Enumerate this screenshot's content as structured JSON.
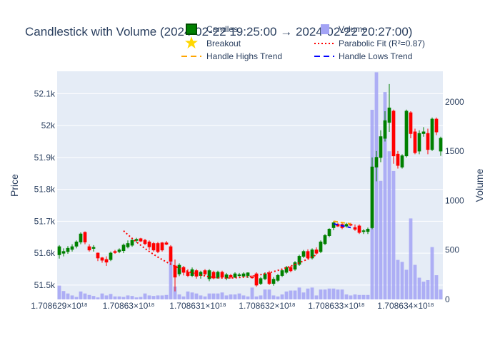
{
  "chart_data": {
    "type": "candlestick",
    "title": "Candlestick with Volume (2024-02-22 19:25:00 → 2024-02-22 20:27:00)",
    "xlabel": "",
    "ylabel": "Price",
    "y2label": "Volume",
    "x_tick_labels": [
      "1.708629×10¹⁸",
      "1.70863×10¹⁸",
      "1.708631×10¹⁸",
      "1.708632×10¹⁸",
      "1.708633×10¹⁸",
      "1.708634×10¹⁸"
    ],
    "y_tick_labels": [
      "51.5k",
      "51.6k",
      "51.7k",
      "51.8k",
      "51.9k",
      "52k",
      "52.1k"
    ],
    "y_ticks": [
      51500,
      51600,
      51700,
      51800,
      51900,
      52000,
      52100
    ],
    "y2_tick_labels": [
      "0",
      "500",
      "1000",
      "1500",
      "2000"
    ],
    "y2_ticks": [
      0,
      500,
      1000,
      1500,
      2000
    ],
    "ylim": [
      51455,
      52170
    ],
    "y2lim": [
      0,
      2310
    ],
    "colors": {
      "increasing": "#008000",
      "decreasing": "#ff0000",
      "volume": "#a3a3f5",
      "breakout": "#ffd700",
      "parabolic": "#ff0000",
      "handle_highs": "#ffa500",
      "handle_lows": "#0000ff",
      "plot_bg": "#e5ecf6",
      "grid": "#ffffff"
    },
    "legend": {
      "placement": "top",
      "entries": [
        {
          "name": "Candles",
          "symbol": "candle"
        },
        {
          "name": "Volume",
          "symbol": "bar"
        },
        {
          "name": "Breakout",
          "symbol": "star"
        },
        {
          "name": "Parabolic Fit (R²=0.87)",
          "symbol": "dotted-line"
        },
        {
          "name": "Handle Highs Trend",
          "symbol": "dashed-orange"
        },
        {
          "name": "Handle Lows Trend",
          "symbol": "dashed-blue"
        }
      ]
    },
    "candles": [
      {
        "o": 51595,
        "h": 51625,
        "l": 51583,
        "c": 51620
      },
      {
        "o": 51600,
        "h": 51615,
        "l": 51590,
        "c": 51605
      },
      {
        "o": 51605,
        "h": 51622,
        "l": 51598,
        "c": 51615
      },
      {
        "o": 51612,
        "h": 51628,
        "l": 51605,
        "c": 51620
      },
      {
        "o": 51622,
        "h": 51640,
        "l": 51615,
        "c": 51635
      },
      {
        "o": 51635,
        "h": 51665,
        "l": 51628,
        "c": 51660
      },
      {
        "o": 51665,
        "h": 51668,
        "l": 51628,
        "c": 51635
      },
      {
        "o": 51620,
        "h": 51628,
        "l": 51605,
        "c": 51610
      },
      {
        "o": 51615,
        "h": 51625,
        "l": 51605,
        "c": 51618
      },
      {
        "o": 51600,
        "h": 51602,
        "l": 51575,
        "c": 51585
      },
      {
        "o": 51585,
        "h": 51588,
        "l": 51570,
        "c": 51578
      },
      {
        "o": 51580,
        "h": 51590,
        "l": 51560,
        "c": 51572
      },
      {
        "o": 51580,
        "h": 51605,
        "l": 51575,
        "c": 51600
      },
      {
        "o": 51605,
        "h": 51610,
        "l": 51598,
        "c": 51602
      },
      {
        "o": 51605,
        "h": 51615,
        "l": 51600,
        "c": 51610
      },
      {
        "o": 51608,
        "h": 51630,
        "l": 51600,
        "c": 51625
      },
      {
        "o": 51620,
        "h": 51640,
        "l": 51615,
        "c": 51630
      },
      {
        "o": 51625,
        "h": 51645,
        "l": 51620,
        "c": 51640
      },
      {
        "o": 51640,
        "h": 51648,
        "l": 51632,
        "c": 51643
      },
      {
        "o": 51645,
        "h": 51648,
        "l": 51635,
        "c": 51638
      },
      {
        "o": 51640,
        "h": 51645,
        "l": 51625,
        "c": 51630
      },
      {
        "o": 51635,
        "h": 51640,
        "l": 51610,
        "c": 51620
      },
      {
        "o": 51630,
        "h": 51635,
        "l": 51605,
        "c": 51610
      },
      {
        "o": 51630,
        "h": 51635,
        "l": 51600,
        "c": 51605
      },
      {
        "o": 51632,
        "h": 51635,
        "l": 51605,
        "c": 51610
      },
      {
        "o": 51632,
        "h": 51638,
        "l": 51625,
        "c": 51628
      },
      {
        "o": 51620,
        "h": 51625,
        "l": 51565,
        "c": 51575
      },
      {
        "o": 51560,
        "h": 51580,
        "l": 51480,
        "c": 51525
      },
      {
        "o": 51535,
        "h": 51568,
        "l": 51528,
        "c": 51562
      },
      {
        "o": 51555,
        "h": 51560,
        "l": 51530,
        "c": 51540
      },
      {
        "o": 51540,
        "h": 51550,
        "l": 51525,
        "c": 51530
      },
      {
        "o": 51530,
        "h": 51555,
        "l": 51525,
        "c": 51548
      },
      {
        "o": 51545,
        "h": 51550,
        "l": 51520,
        "c": 51528
      },
      {
        "o": 51530,
        "h": 51545,
        "l": 51520,
        "c": 51540
      },
      {
        "o": 51545,
        "h": 51550,
        "l": 51530,
        "c": 51535
      },
      {
        "o": 51520,
        "h": 51550,
        "l": 51512,
        "c": 51545
      },
      {
        "o": 51540,
        "h": 51545,
        "l": 51518,
        "c": 51522
      },
      {
        "o": 51522,
        "h": 51545,
        "l": 51520,
        "c": 51540
      },
      {
        "o": 51540,
        "h": 51545,
        "l": 51520,
        "c": 51525
      },
      {
        "o": 51522,
        "h": 51538,
        "l": 51515,
        "c": 51532
      },
      {
        "o": 51530,
        "h": 51535,
        "l": 51520,
        "c": 51525
      },
      {
        "o": 51525,
        "h": 51540,
        "l": 51522,
        "c": 51535
      },
      {
        "o": 51530,
        "h": 51538,
        "l": 51525,
        "c": 51532
      },
      {
        "o": 51528,
        "h": 51540,
        "l": 51525,
        "c": 51535
      },
      {
        "o": 51530,
        "h": 51540,
        "l": 51522,
        "c": 51538
      },
      {
        "o": 51525,
        "h": 51530,
        "l": 51520,
        "c": 51523
      },
      {
        "o": 51535,
        "h": 51540,
        "l": 51495,
        "c": 51500
      },
      {
        "o": 51505,
        "h": 51525,
        "l": 51500,
        "c": 51520
      },
      {
        "o": 51520,
        "h": 51540,
        "l": 51515,
        "c": 51535
      },
      {
        "o": 51538,
        "h": 51545,
        "l": 51500,
        "c": 51505
      },
      {
        "o": 51505,
        "h": 51525,
        "l": 51498,
        "c": 51518
      },
      {
        "o": 51515,
        "h": 51535,
        "l": 51510,
        "c": 51530
      },
      {
        "o": 51530,
        "h": 51550,
        "l": 51525,
        "c": 51545
      },
      {
        "o": 51540,
        "h": 51560,
        "l": 51535,
        "c": 51555
      },
      {
        "o": 51555,
        "h": 51560,
        "l": 51540,
        "c": 51545
      },
      {
        "o": 51550,
        "h": 51575,
        "l": 51545,
        "c": 51570
      },
      {
        "o": 51565,
        "h": 51595,
        "l": 51560,
        "c": 51590
      },
      {
        "o": 51590,
        "h": 51610,
        "l": 51585,
        "c": 51605
      },
      {
        "o": 51605,
        "h": 51612,
        "l": 51580,
        "c": 51585
      },
      {
        "o": 51585,
        "h": 51615,
        "l": 51580,
        "c": 51610
      },
      {
        "o": 51610,
        "h": 51618,
        "l": 51595,
        "c": 51600
      },
      {
        "o": 51605,
        "h": 51640,
        "l": 51600,
        "c": 51635
      },
      {
        "o": 51630,
        "h": 51660,
        "l": 51625,
        "c": 51655
      },
      {
        "o": 51655,
        "h": 51678,
        "l": 51650,
        "c": 51675
      },
      {
        "o": 51680,
        "h": 51700,
        "l": 51672,
        "c": 51695
      },
      {
        "o": 51690,
        "h": 51695,
        "l": 51682,
        "c": 51685
      },
      {
        "o": 51690,
        "h": 51698,
        "l": 51675,
        "c": 51680
      },
      {
        "o": 51685,
        "h": 51695,
        "l": 51680,
        "c": 51690
      },
      {
        "o": 51690,
        "h": 51695,
        "l": 51685,
        "c": 51688
      },
      {
        "o": 51680,
        "h": 51690,
        "l": 51670,
        "c": 51675
      },
      {
        "o": 51685,
        "h": 51690,
        "l": 51660,
        "c": 51665
      },
      {
        "o": 51668,
        "h": 51675,
        "l": 51660,
        "c": 51670
      },
      {
        "o": 51668,
        "h": 51680,
        "l": 51660,
        "c": 51675
      },
      {
        "o": 51680,
        "h": 51900,
        "l": 51675,
        "c": 51870
      },
      {
        "o": 51870,
        "h": 51920,
        "l": 51825,
        "c": 51900
      },
      {
        "o": 51900,
        "h": 51985,
        "l": 51885,
        "c": 51965
      },
      {
        "o": 51960,
        "h": 52045,
        "l": 51950,
        "c": 52015
      },
      {
        "o": 52010,
        "h": 52130,
        "l": 51980,
        "c": 52055
      },
      {
        "o": 52045,
        "h": 52050,
        "l": 51880,
        "c": 51905
      },
      {
        "o": 51910,
        "h": 51920,
        "l": 51865,
        "c": 51875
      },
      {
        "o": 51870,
        "h": 51910,
        "l": 51865,
        "c": 51905
      },
      {
        "o": 51905,
        "h": 52050,
        "l": 51900,
        "c": 52045
      },
      {
        "o": 52040,
        "h": 52045,
        "l": 51960,
        "c": 51975
      },
      {
        "o": 51980,
        "h": 51990,
        "l": 51910,
        "c": 51915
      },
      {
        "o": 51920,
        "h": 51985,
        "l": 51910,
        "c": 51975
      },
      {
        "o": 51975,
        "h": 51995,
        "l": 51965,
        "c": 51980
      },
      {
        "o": 51975,
        "h": 51990,
        "l": 51910,
        "c": 51925
      },
      {
        "o": 51925,
        "h": 52025,
        "l": 51920,
        "c": 52020
      },
      {
        "o": 52020,
        "h": 52025,
        "l": 51970,
        "c": 51980
      },
      {
        "o": 51920,
        "h": 51965,
        "l": 51905,
        "c": 51960
      }
    ],
    "volumes": [
      140,
      85,
      60,
      40,
      25,
      80,
      60,
      45,
      35,
      20,
      60,
      40,
      55,
      30,
      30,
      25,
      40,
      35,
      20,
      25,
      60,
      40,
      35,
      40,
      40,
      45,
      450,
      130,
      50,
      30,
      80,
      70,
      60,
      40,
      30,
      60,
      60,
      60,
      70,
      40,
      50,
      50,
      60,
      40,
      30,
      120,
      30,
      40,
      100,
      100,
      40,
      30,
      50,
      80,
      90,
      90,
      120,
      70,
      110,
      120,
      40,
      100,
      100,
      110,
      110,
      100,
      100,
      50,
      40,
      50,
      45,
      45,
      45,
      1920,
      2300,
      1200,
      2100,
      1500,
      1300,
      400,
      380,
      300,
      820,
      350,
      220,
      180,
      195,
      530,
      245,
      100
    ],
    "parabolic_fit": {
      "name": "Parabolic Fit (R²=0.87)",
      "start_index": 15,
      "end_index": 60,
      "vertex_index": 39,
      "vertex_value": 51522,
      "start_value": 51670,
      "end_value": 51595
    },
    "handle_highs_trend": {
      "name": "Handle Highs Trend",
      "points": [
        {
          "i": 64,
          "v": 51700
        },
        {
          "i": 68,
          "v": 51692
        }
      ]
    },
    "handle_lows_trend": {
      "name": "Handle Lows Trend",
      "points": [
        {
          "i": 64,
          "v": 51692
        },
        {
          "i": 68,
          "v": 51680
        }
      ]
    }
  }
}
